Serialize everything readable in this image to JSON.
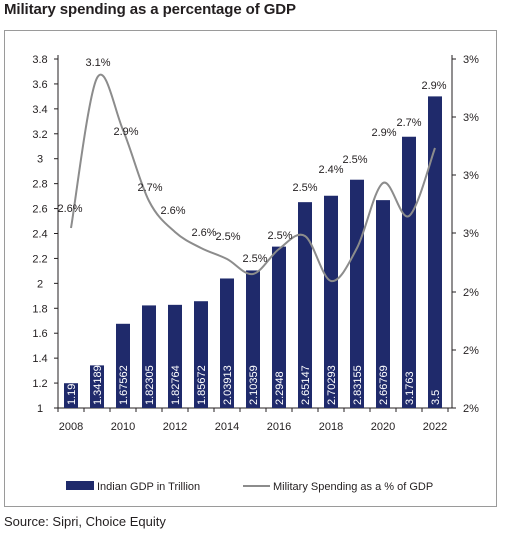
{
  "title": "Military spending as a percentage of GDP",
  "source": "Source: Sipri, Choice Equity",
  "colors": {
    "bar": "#1f2a6b",
    "line": "#8c8c8c",
    "axis": "#231f20",
    "frame": "#9a9a9a"
  },
  "chart_data": {
    "type": "bar",
    "combo_with": "line",
    "categories": [
      "2008",
      "2009",
      "2010",
      "2011",
      "2012",
      "2013",
      "2014",
      "2015",
      "2016",
      "2017",
      "2018",
      "2019",
      "2020",
      "2021",
      "2022"
    ],
    "x_tick_labels": [
      "2008",
      "2010",
      "2012",
      "2014",
      "2016",
      "2018",
      "2020",
      "2022"
    ],
    "series": [
      {
        "name": "Indian GDP in Trillion",
        "type": "bar",
        "axis": "left",
        "values": [
          1.1989,
          1.34189,
          1.67562,
          1.82305,
          1.82764,
          1.85672,
          2.03913,
          2.10359,
          2.2948,
          2.65147,
          2.70293,
          2.83155,
          2.66769,
          3.1763,
          3.5
        ],
        "data_labels": [
          "1.1989",
          "1.34189",
          "1.67562",
          "1.82305",
          "1.82764",
          "1.85672",
          "2.03913",
          "2.10359",
          "2.2948",
          "2.65147",
          "2.70293",
          "2.83155",
          "2.66769",
          "3.1763",
          "3.5"
        ]
      },
      {
        "name": "Military Spending as a % of GDP",
        "type": "line",
        "axis": "right",
        "values": [
          2.6,
          3.1,
          2.9,
          2.7,
          2.6,
          2.6,
          2.5,
          2.5,
          2.5,
          2.5,
          2.4,
          2.5,
          2.9,
          2.7,
          2.9
        ],
        "data_labels": [
          "2.6%",
          "3.1%",
          "2.9%",
          "2.7%",
          "2.6%",
          "2.6%",
          "2.5%",
          "2.5%",
          "2.5%",
          "2.5%",
          "2.4%",
          "2.5%",
          "2.9%",
          "2.7%",
          "2.9%"
        ]
      }
    ],
    "y_left": {
      "ticks": [
        "1",
        "1.2",
        "1.4",
        "1.6",
        "1.8",
        "2",
        "2.2",
        "2.4",
        "2.6",
        "2.8",
        "3",
        "3.2",
        "3.4",
        "3.6",
        "3.8"
      ],
      "ylim": [
        1,
        3.8
      ]
    },
    "y_right": {
      "tick_labels": [
        "2%",
        "2%",
        "2%",
        "3%",
        "3%",
        "3%",
        "3%",
        "3%"
      ]
    },
    "legend_position": "bottom",
    "grid": false
  }
}
